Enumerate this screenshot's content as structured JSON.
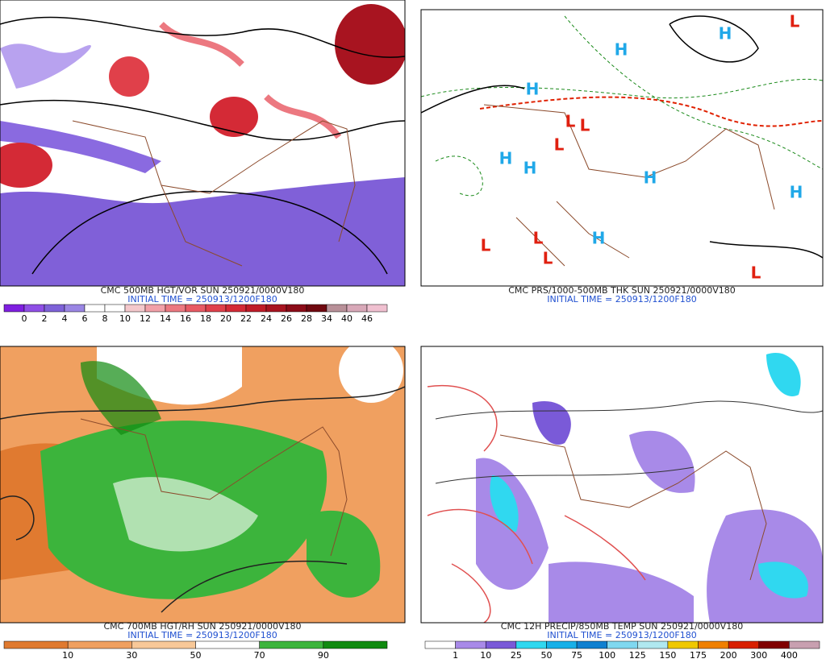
{
  "panels": [
    {
      "caption": "CMC 500MB HGT/VOR SUN 250921/0000V180",
      "initial_time": "INITIAL TIME = 250913/1200F180",
      "colorbar": {
        "labels": [
          "0",
          "2",
          "4",
          "6",
          "8",
          "10",
          "12",
          "14",
          "16",
          "18",
          "20",
          "22",
          "24",
          "26",
          "28",
          "34",
          "40",
          "46"
        ],
        "colors": [
          "#7f1fe0",
          "#8f4fe6",
          "#7e62d8",
          "#9a86e4",
          "#ffffff",
          "#ffffff",
          "#f4c8cc",
          "#f2a0a8",
          "#ec7880",
          "#e85a64",
          "#e0404a",
          "#d42a36",
          "#c01c28",
          "#a81420",
          "#8c0c18",
          "#700810",
          "#b89098",
          "#d8a8b8",
          "#f0c0d0"
        ]
      }
    },
    {
      "caption": "CMC PRS/1000-500MB THK SUN 250921/0000V180",
      "initial_time": "INITIAL TIME = 250913/1200F180",
      "labels": [
        "H",
        "H",
        "H",
        "H",
        "H",
        "H",
        "H",
        "H",
        "L",
        "L",
        "L",
        "L",
        "L",
        "L",
        "L",
        "L"
      ]
    },
    {
      "caption": "CMC 700MB HGT/RH SUN 250921/0000V180",
      "initial_time": "INITIAL TIME = 250913/1200F180",
      "colorbar": {
        "labels": [
          "10",
          "30",
          "50",
          "70",
          "90"
        ],
        "colors": [
          "#e07a30",
          "#f0a060",
          "#f8c898",
          "#ffffff",
          "#3cb43c",
          "#108a10"
        ]
      }
    },
    {
      "caption": "CMC 12H PRECIP/850MB TEMP SUN 250921/0000V180",
      "initial_time": "INITIAL TIME = 250913/1200F180",
      "colorbar": {
        "labels": [
          "1",
          "10",
          "25",
          "50",
          "75",
          "100",
          "125",
          "150",
          "175",
          "200",
          "300",
          "400"
        ],
        "colors": [
          "#ffffff",
          "#a88ae8",
          "#7a5ad8",
          "#30d8f0",
          "#18b0e8",
          "#1080d0",
          "#80d8f0",
          "#b0e8f0",
          "#f0c800",
          "#f08000",
          "#d82000",
          "#800000",
          "#c8a0b0"
        ]
      }
    }
  ]
}
